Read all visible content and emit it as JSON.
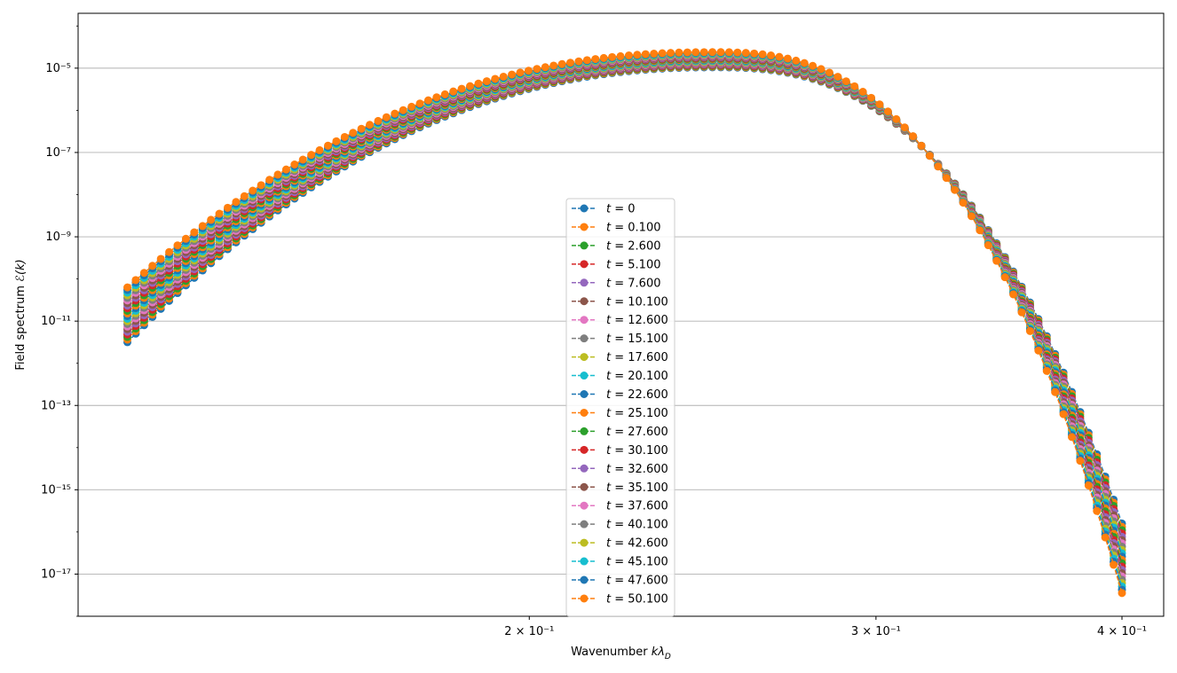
{
  "chart_data": {
    "type": "line",
    "title": "",
    "xlabel": "Wavenumber $k\\lambda_D$",
    "ylabel": "Field spectrum $\\mathcal{E}(k)$",
    "xscale": "log",
    "yscale": "log",
    "xlim": [
      0.118,
      0.42
    ],
    "ylim": [
      1e-18,
      0.0002
    ],
    "grid": "y-major",
    "legend_position": "center",
    "x_ticks": [
      {
        "value": 0.2,
        "label": "2 × 10⁻¹"
      },
      {
        "value": 0.3,
        "label": "3 × 10⁻¹"
      },
      {
        "value": 0.4,
        "label": "4 × 10⁻¹"
      }
    ],
    "y_ticks": [
      {
        "value": 1e-05,
        "label": "10⁻⁵"
      },
      {
        "value": 1e-07,
        "label": "10⁻⁷"
      },
      {
        "value": 1e-09,
        "label": "10⁻⁹"
      },
      {
        "value": 1e-11,
        "label": "10⁻¹¹"
      },
      {
        "value": 1e-13,
        "label": "10⁻¹³"
      },
      {
        "value": 1e-15,
        "label": "10⁻¹⁵"
      },
      {
        "value": 1e-17,
        "label": "10⁻¹⁷"
      }
    ],
    "x_range_points": [
      0.125,
      0.4
    ],
    "num_points_per_series": 120,
    "series_shape": {
      "start_log10_first": -11.5,
      "start_log10_last": -10.2,
      "peak_x": 0.248,
      "peak_log10_first": -4.98,
      "peak_log10_last": -4.62,
      "end_log10_first": -15.8,
      "end_log10_last": -17.45
    },
    "series": [
      {
        "name": "t = 0",
        "color": "#1f77b4"
      },
      {
        "name": "t = 0.100",
        "color": "#ff7f0e"
      },
      {
        "name": "t = 2.600",
        "color": "#2ca02c"
      },
      {
        "name": "t = 5.100",
        "color": "#d62728"
      },
      {
        "name": "t = 7.600",
        "color": "#9467bd"
      },
      {
        "name": "t = 10.100",
        "color": "#8c564b"
      },
      {
        "name": "t = 12.600",
        "color": "#e377c2"
      },
      {
        "name": "t = 15.100",
        "color": "#7f7f7f"
      },
      {
        "name": "t = 17.600",
        "color": "#bcbd22"
      },
      {
        "name": "t = 20.100",
        "color": "#17becf"
      },
      {
        "name": "t = 22.600",
        "color": "#1f77b4"
      },
      {
        "name": "t = 25.100",
        "color": "#ff7f0e"
      },
      {
        "name": "t = 27.600",
        "color": "#2ca02c"
      },
      {
        "name": "t = 30.100",
        "color": "#d62728"
      },
      {
        "name": "t = 32.600",
        "color": "#9467bd"
      },
      {
        "name": "t = 35.100",
        "color": "#8c564b"
      },
      {
        "name": "t = 37.600",
        "color": "#e377c2"
      },
      {
        "name": "t = 40.100",
        "color": "#7f7f7f"
      },
      {
        "name": "t = 42.600",
        "color": "#bcbd22"
      },
      {
        "name": "t = 45.100",
        "color": "#17becf"
      },
      {
        "name": "t = 47.600",
        "color": "#1f77b4"
      },
      {
        "name": "t = 50.100",
        "color": "#ff7f0e"
      }
    ]
  }
}
